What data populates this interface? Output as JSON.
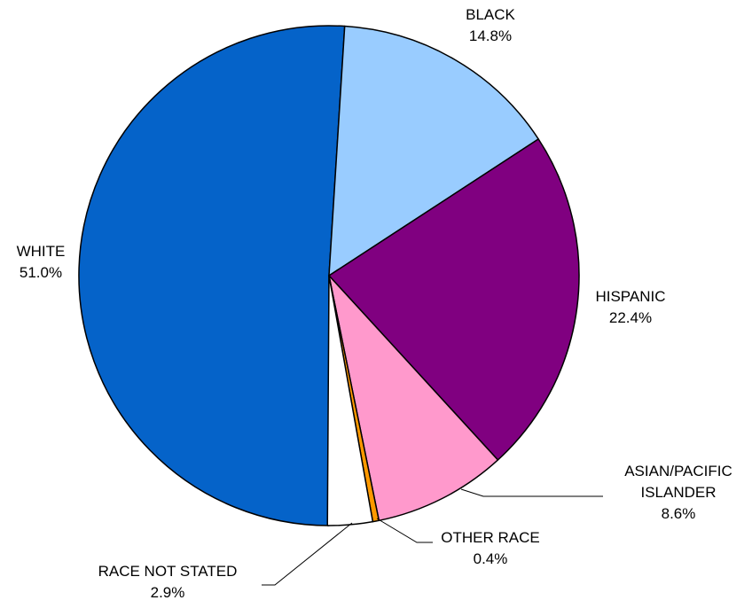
{
  "chart_data": {
    "type": "pie",
    "title": "",
    "slices": [
      {
        "name": "WHITE",
        "value": 51.0,
        "label": "51.0%",
        "color": "#0563C9"
      },
      {
        "name": "BLACK",
        "value": 14.8,
        "label": "14.8%",
        "color": "#99CCFF"
      },
      {
        "name": "HISPANIC",
        "value": 22.4,
        "label": "22.4%",
        "color": "#800080"
      },
      {
        "name": "ASIAN/PACIFIC ISLANDER",
        "name_lines": [
          "ASIAN/PACIFIC",
          "ISLANDER"
        ],
        "value": 8.6,
        "label": "8.6%",
        "color": "#FF99CC"
      },
      {
        "name": "OTHER RACE",
        "value": 0.4,
        "label": "0.4%",
        "color": "#FF9900"
      },
      {
        "name": "RACE NOT STATED",
        "value": 2.9,
        "label": "2.9%",
        "color": "#FFFFFF"
      }
    ],
    "legend": "none",
    "labels": "outside"
  }
}
